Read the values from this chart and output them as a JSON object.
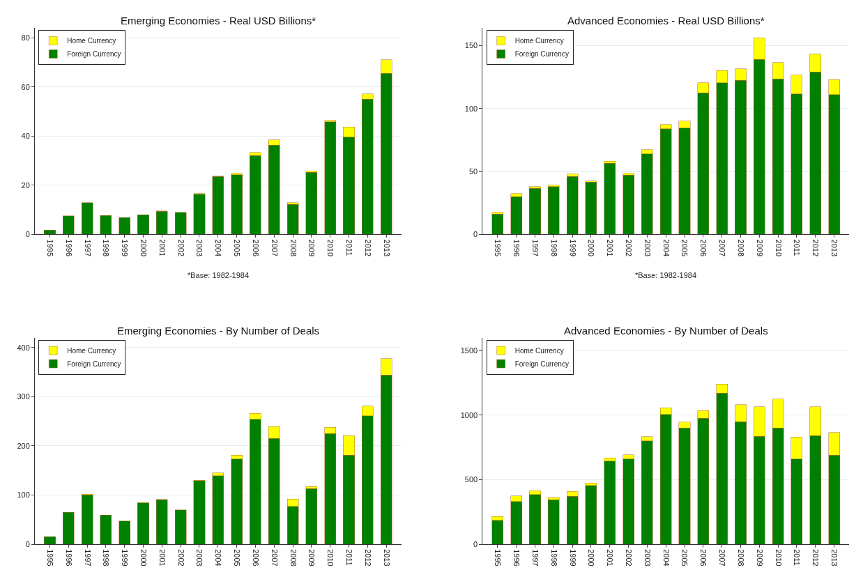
{
  "chart_data": [
    {
      "type": "bar",
      "title": "Emerging Economies - Real USD Billions*",
      "stacked": true,
      "grid": "y",
      "legend": "top left",
      "categories": [
        "1995",
        "1996",
        "1997",
        "1998",
        "1999",
        "2000",
        "2001",
        "2002",
        "2003",
        "2004",
        "2005",
        "2006",
        "2007",
        "2008",
        "2009",
        "2010",
        "2011",
        "2012",
        "2013"
      ],
      "series": [
        {
          "name": "Foreign Currency",
          "color": "#008000",
          "values": [
            1.7,
            7.5,
            13,
            7.7,
            6.8,
            8,
            9.4,
            9,
            16.3,
            23.5,
            24.3,
            32.1,
            36.3,
            12.2,
            25.3,
            45.8,
            39.6,
            55,
            65.5
          ]
        },
        {
          "name": "Home Currency",
          "color": "#ffff00",
          "values": [
            null,
            null,
            null,
            null,
            null,
            null,
            0.2,
            null,
            0.3,
            0.2,
            0.6,
            1.3,
            2.2,
            0.8,
            0.5,
            0.6,
            4.1,
            2.2,
            5.5
          ]
        }
      ],
      "ylim": [
        0,
        84
      ],
      "yticks": [
        0,
        20,
        40,
        60,
        80
      ],
      "annotations": [
        "*Base: 1982-1984"
      ]
    },
    {
      "type": "bar",
      "title": "Advanced Economies - Real USD Billions*",
      "stacked": true,
      "grid": "y",
      "legend": "top left",
      "categories": [
        "1995",
        "1996",
        "1997",
        "1998",
        "1999",
        "2000",
        "2001",
        "2002",
        "2003",
        "2004",
        "2005",
        "2006",
        "2007",
        "2008",
        "2009",
        "2010",
        "2011",
        "2012",
        "2013"
      ],
      "series": [
        {
          "name": "Foreign Currency",
          "color": "#008000",
          "values": [
            16,
            30,
            36.5,
            38,
            46,
            41.5,
            56.5,
            47,
            64,
            84,
            84.5,
            112.5,
            120.5,
            122.5,
            139,
            123.5,
            111.5,
            129,
            111
          ]
        },
        {
          "name": "Home Currency",
          "color": "#ffff00",
          "values": [
            1.5,
            2.5,
            1.5,
            1,
            2,
            0.8,
            1.8,
            1.5,
            3.3,
            3.3,
            5.5,
            8,
            9.5,
            9,
            17,
            13,
            15,
            14.5,
            12
          ]
        }
      ],
      "ylim": [
        0,
        164
      ],
      "yticks": [
        0,
        50,
        100,
        150
      ],
      "annotations": [
        "*Base: 1982-1984"
      ]
    },
    {
      "type": "bar",
      "title": "Emerging Economies - By Number of Deals",
      "stacked": true,
      "grid": "y",
      "legend": "top left",
      "categories": [
        "1995",
        "1996",
        "1997",
        "1998",
        "1999",
        "2000",
        "2001",
        "2002",
        "2003",
        "2004",
        "2005",
        "2006",
        "2007",
        "2008",
        "2009",
        "2010",
        "2011",
        "2012",
        "2013"
      ],
      "series": [
        {
          "name": "Foreign Currency",
          "color": "#008000",
          "values": [
            15,
            65,
            100,
            59,
            47,
            84,
            90,
            70,
            129,
            139,
            173,
            254,
            215,
            77,
            113,
            225,
            181,
            261,
            344
          ]
        },
        {
          "name": "Home Currency",
          "color": "#ffff00",
          "values": [
            null,
            null,
            2,
            null,
            null,
            1,
            1,
            null,
            1,
            6,
            8,
            12,
            24,
            15,
            4,
            13,
            40,
            20,
            33
          ]
        }
      ],
      "ylim": [
        0,
        420
      ],
      "yticks": [
        0,
        100,
        200,
        300,
        400
      ]
    },
    {
      "type": "bar",
      "title": "Advanced Economies - By Number of Deals",
      "stacked": true,
      "grid": "y",
      "legend": "top left",
      "categories": [
        "1995",
        "1996",
        "1997",
        "1998",
        "1999",
        "2000",
        "2001",
        "2002",
        "2003",
        "2004",
        "2005",
        "2006",
        "2007",
        "2008",
        "2009",
        "2010",
        "2011",
        "2012",
        "2013"
      ],
      "series": [
        {
          "name": "Foreign Currency",
          "color": "#008000",
          "values": [
            185,
            330,
            385,
            345,
            370,
            455,
            645,
            660,
            800,
            1005,
            900,
            975,
            1170,
            950,
            835,
            900,
            660,
            840,
            690
          ]
        },
        {
          "name": "Home Currency",
          "color": "#ffff00",
          "values": [
            30,
            45,
            28,
            15,
            40,
            18,
            22,
            32,
            32,
            52,
            45,
            60,
            70,
            130,
            230,
            225,
            170,
            225,
            175
          ]
        }
      ],
      "ylim": [
        0,
        1600
      ],
      "yticks": [
        0,
        500,
        1000,
        1500
      ]
    }
  ]
}
